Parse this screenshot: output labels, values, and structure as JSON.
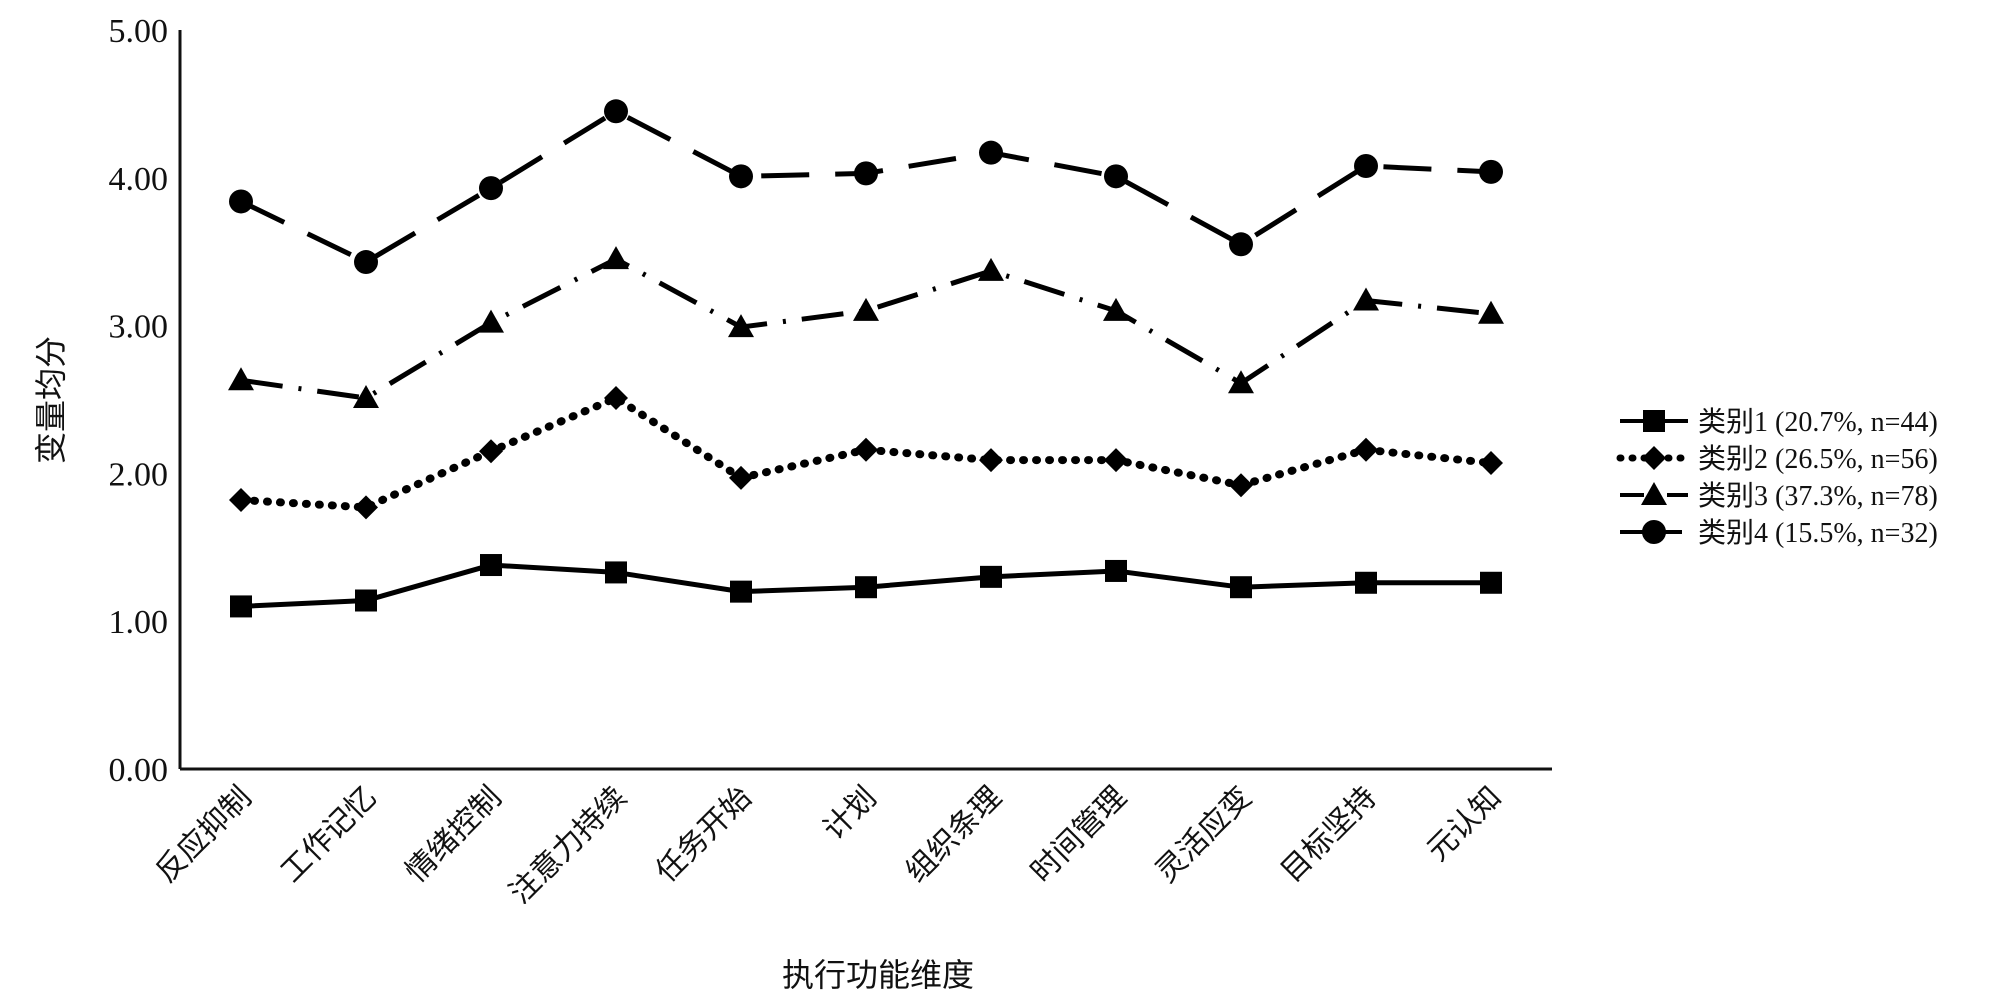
{
  "chart_data": {
    "type": "line",
    "xlabel": "执行功能维度",
    "ylabel": "变量均分",
    "ylim": [
      0,
      5
    ],
    "yticks": [
      "0.00",
      "1.00",
      "2.00",
      "3.00",
      "4.00",
      "5.00"
    ],
    "grid": false,
    "legend_position": "right",
    "categories": [
      "反应抑制",
      "工作记忆",
      "情绪控制",
      "注意力持续",
      "任务开始",
      "计划",
      "组织条理",
      "时间管理",
      "灵活应变",
      "目标坚持",
      "元认知"
    ],
    "series": [
      {
        "name": "类别1 (20.7%, n=44)",
        "marker": "square",
        "line_style": "solid",
        "color": "#000000",
        "values": [
          1.1,
          1.14,
          1.38,
          1.33,
          1.2,
          1.23,
          1.3,
          1.34,
          1.23,
          1.26,
          1.26
        ]
      },
      {
        "name": "类别2 (26.5%, n=56)",
        "marker": "diamond",
        "line_style": "dotted",
        "color": "#000000",
        "values": [
          1.82,
          1.77,
          2.15,
          2.51,
          1.97,
          2.16,
          2.09,
          2.09,
          1.92,
          2.16,
          2.07
        ]
      },
      {
        "name": "类别3 (37.3%, n=78)",
        "marker": "triangle",
        "line_style": "dash-dot",
        "color": "#000000",
        "values": [
          2.63,
          2.51,
          3.02,
          3.45,
          2.99,
          3.1,
          3.37,
          3.1,
          2.61,
          3.17,
          3.08
        ]
      },
      {
        "name": "类别4 (15.5%, n=32)",
        "marker": "circle",
        "line_style": "long-dash",
        "color": "#000000",
        "values": [
          3.84,
          3.43,
          3.93,
          4.45,
          4.01,
          4.03,
          4.17,
          4.01,
          3.55,
          4.08,
          4.04
        ]
      }
    ]
  }
}
